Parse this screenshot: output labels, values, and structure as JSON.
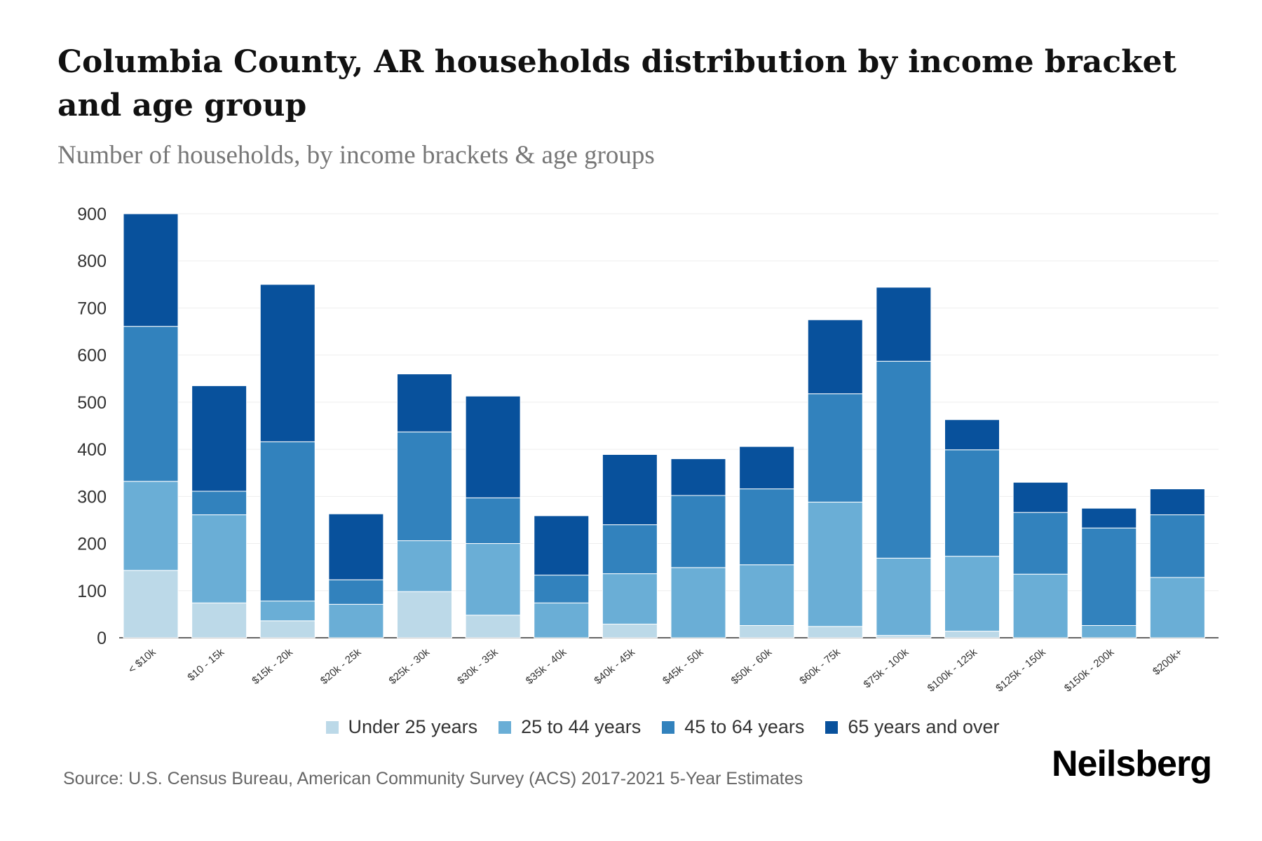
{
  "title": "Columbia County, AR households distribution by income bracket and age group",
  "subtitle": "Number of households, by income brackets & age groups",
  "source": "Source: U.S. Census Bureau, American Community Survey (ACS) 2017-2021 5-Year Estimates",
  "logo": "Neilsberg",
  "chart_data": {
    "type": "bar",
    "stacked": true,
    "title": "Columbia County, AR households distribution by income bracket and age group",
    "xlabel": "",
    "ylabel": "Number of households",
    "ylim": [
      0,
      900
    ],
    "yticks": [
      0,
      100,
      200,
      300,
      400,
      500,
      600,
      700,
      800,
      900
    ],
    "grid": true,
    "legend_position": "bottom",
    "categories": [
      "< $10k",
      "$10 - 15k",
      "$15k - 20k",
      "$20k - 25k",
      "$25k - 30k",
      "$30k - 35k",
      "$35k - 40k",
      "$40k - 45k",
      "$45k - 50k",
      "$50k - 60k",
      "$60k - 75k",
      "$75k - 100k",
      "$100k - 125k",
      "$125k - 150k",
      "$150k - 200k",
      "$200k+"
    ],
    "series": [
      {
        "name": "Under 25 years",
        "color": "#bcd9e8",
        "values": [
          143,
          74,
          36,
          0,
          98,
          48,
          0,
          29,
          0,
          26,
          24,
          5,
          14,
          0,
          0,
          0
        ]
      },
      {
        "name": "25 to 44 years",
        "color": "#6aaed6",
        "values": [
          189,
          187,
          42,
          71,
          108,
          152,
          74,
          107,
          149,
          129,
          264,
          164,
          159,
          135,
          26,
          128
        ]
      },
      {
        "name": "45 to 64 years",
        "color": "#3282bd",
        "values": [
          329,
          50,
          338,
          52,
          231,
          97,
          59,
          104,
          153,
          161,
          230,
          418,
          226,
          131,
          207,
          133
        ]
      },
      {
        "name": "65 years and over",
        "color": "#08519c",
        "values": [
          239,
          224,
          334,
          140,
          123,
          216,
          126,
          149,
          78,
          90,
          157,
          157,
          64,
          64,
          42,
          55
        ]
      }
    ]
  }
}
